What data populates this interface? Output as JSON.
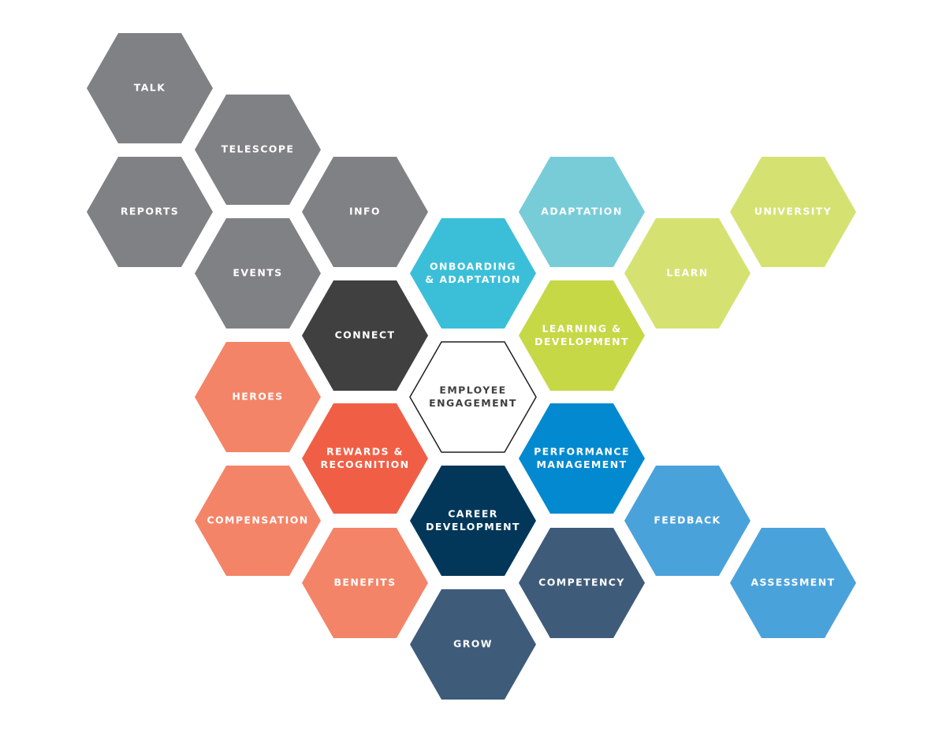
{
  "nodes": [
    {
      "lines": [
        "TALK"
      ]
    },
    {
      "lines": [
        "TELESCOPE"
      ]
    },
    {
      "lines": [
        "REPORTS"
      ]
    },
    {
      "lines": [
        "INFO"
      ]
    },
    {
      "lines": [
        "EVENTS"
      ]
    },
    {
      "lines": [
        "ONBOARDING",
        "& ADAPTATION"
      ]
    },
    {
      "lines": [
        "ADAPTATION"
      ]
    },
    {
      "lines": [
        "UNIVERSITY"
      ]
    },
    {
      "lines": [
        "LEARN"
      ]
    },
    {
      "lines": [
        "CONNECT"
      ]
    },
    {
      "lines": [
        "LEARNING &",
        "DEVELOPMENT"
      ]
    },
    {
      "lines": [
        "EMPLOYEE",
        "ENGAGEMENT"
      ]
    },
    {
      "lines": [
        "HEROES"
      ]
    },
    {
      "lines": [
        "REWARDS &",
        "RECOGNITION"
      ]
    },
    {
      "lines": [
        "PERFORMANCE",
        "MANAGEMENT"
      ]
    },
    {
      "lines": [
        "COMPENSATION"
      ]
    },
    {
      "lines": [
        "CAREER",
        "DEVELOPMENT"
      ]
    },
    {
      "lines": [
        "FEEDBACK"
      ]
    },
    {
      "lines": [
        "BENEFITS"
      ]
    },
    {
      "lines": [
        "COMPETENCY"
      ]
    },
    {
      "lines": [
        "ASSESSMENT"
      ]
    },
    {
      "lines": [
        "GROW"
      ]
    }
  ]
}
